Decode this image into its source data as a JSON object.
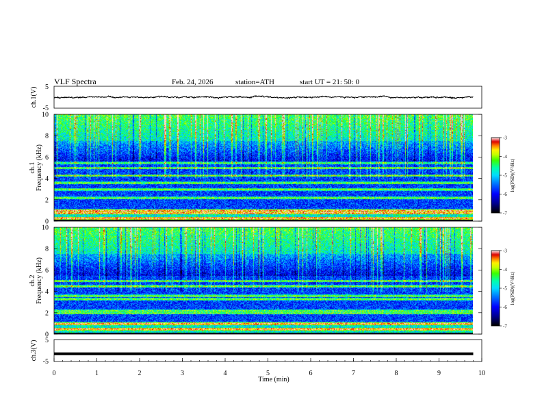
{
  "header": {
    "title": "VLF  Spectra",
    "date": "Feb. 24, 2026",
    "station": "station=ATH",
    "start": "start  UT  =    21: 50: 0"
  },
  "colors": {
    "spectrogram_palette": [
      "#000000",
      "#00008b",
      "#0000ff",
      "#0066ff",
      "#00ccff",
      "#00ffcc",
      "#00ff66",
      "#66ff00",
      "#ccff00",
      "#ffff00",
      "#ff9900",
      "#ff3300",
      "#cc0000",
      "#ffffff"
    ],
    "trace": "#000000"
  },
  "chart_data": [
    {
      "type": "line",
      "name": "ch1-voltage",
      "ylabel": "ch.1(V)",
      "ylim": [
        -5,
        5
      ],
      "yticks": [
        "5",
        "-5"
      ],
      "description_mean": 0.0,
      "noise_amplitude": 0.8,
      "xlim": [
        0,
        10
      ],
      "data_extent": [
        0,
        9.8
      ]
    },
    {
      "type": "heatmap",
      "name": "ch1-spectrogram",
      "ylabel": "ch.1\nFrequency  (kHz)",
      "ylabel_lines": [
        "ch.1",
        "Frequency  (kHz)"
      ],
      "ylim": [
        0,
        10
      ],
      "yticks": [
        "0",
        "2",
        "4",
        "6",
        "8",
        "10"
      ],
      "xlim": [
        0,
        10
      ],
      "data_extent": [
        0,
        9.8
      ],
      "colorbar": {
        "label": "log(PSD)(V²/Hz)",
        "range": [
          -7,
          -3
        ],
        "ticks": [
          "-3",
          "-4",
          "-5",
          "-6",
          "-7"
        ]
      },
      "bands_khz": [
        0.3,
        0.8,
        1.0,
        2.2,
        3.0,
        3.6,
        4.3,
        5.0,
        5.5
      ]
    },
    {
      "type": "heatmap",
      "name": "ch2-spectrogram",
      "ylabel": "ch.2\nFrequency  (kHz)",
      "ylabel_lines": [
        "ch.2",
        "Frequency  (kHz)"
      ],
      "ylim": [
        0,
        10
      ],
      "yticks": [
        "0",
        "2",
        "4",
        "6",
        "8",
        "10"
      ],
      "xlim": [
        0,
        10
      ],
      "data_extent": [
        0,
        9.8
      ],
      "colorbar": {
        "label": "log(PSD)(V²/Hz)",
        "range": [
          -7,
          -3
        ],
        "ticks": [
          "-3",
          "-4",
          "-5",
          "-6",
          "-7"
        ]
      },
      "bands_khz": [
        0.5,
        1.0,
        2.0,
        2.2,
        3.3,
        3.6,
        4.5,
        5.0
      ]
    },
    {
      "type": "line",
      "name": "ch3-voltage",
      "ylabel": "ch.3(V)",
      "ylim": [
        -5,
        5
      ],
      "yticks": [
        "5",
        "-5"
      ],
      "description_mean": -1.5,
      "noise_amplitude": 0.0,
      "xlim": [
        0,
        10
      ],
      "data_extent": [
        0,
        9.8
      ],
      "xlabel": "Time  (min)",
      "xticks": [
        "0",
        "1",
        "2",
        "3",
        "4",
        "5",
        "6",
        "7",
        "8",
        "9",
        "10"
      ]
    }
  ]
}
